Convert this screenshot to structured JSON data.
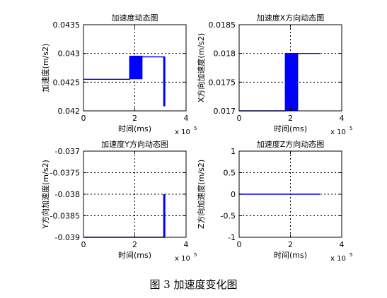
{
  "figure_caption": "图 3  加速度变化图",
  "chart_data": [
    {
      "type": "line",
      "title": "加速度动态图",
      "xlabel": "时间(ms)",
      "ylabel": "加速度(m/s2)",
      "x_multiplier_label": "x 10",
      "x_multiplier_exp": "5",
      "xlim": [
        0,
        4
      ],
      "ylim": [
        0.042,
        0.0435
      ],
      "x_ticks": [
        "0",
        "2",
        "4"
      ],
      "y_ticks": [
        "0.042",
        "0.0425",
        "0.043",
        "0.0435"
      ],
      "grid": true,
      "color": "#0000ff",
      "series": [
        {
          "x": [
            0,
            1.8,
            1.8,
            2.3,
            2.3,
            3.15,
            3.15
          ],
          "y": [
            0.04255,
            0.04255,
            0.04294,
            0.04294,
            0.04294,
            0.04294,
            0.04208
          ]
        }
      ],
      "filled_band": {
        "x": [
          1.8,
          2.3
        ],
        "y": [
          0.04255,
          0.04296
        ]
      }
    },
    {
      "type": "line",
      "title": "加速度X方向动态图",
      "xlabel": "时间(ms)",
      "ylabel": "X方向加速度(m/s2)",
      "x_multiplier_label": "x 10",
      "x_multiplier_exp": "5",
      "xlim": [
        0,
        4
      ],
      "ylim": [
        0.017,
        0.0185
      ],
      "x_ticks": [
        "0",
        "2",
        "4"
      ],
      "y_ticks": [
        "0.017",
        "0.0175",
        "0.018",
        "0.0185"
      ],
      "grid": true,
      "color": "#0000ff",
      "series": [
        {
          "x": [
            0,
            1.8,
            1.8,
            2.3,
            2.3,
            3.15
          ],
          "y": [
            0.017,
            0.017,
            0.018,
            0.018,
            0.018,
            0.018
          ]
        }
      ],
      "filled_band": {
        "x": [
          1.8,
          2.3
        ],
        "y": [
          0.017,
          0.018
        ]
      }
    },
    {
      "type": "line",
      "title": "加速度Y方向动态图",
      "xlabel": "时间(ms)",
      "ylabel": "Y方向加速度(m/s2)",
      "x_multiplier_label": "x 10",
      "x_multiplier_exp": "5",
      "xlim": [
        0,
        4
      ],
      "ylim": [
        -0.039,
        -0.037
      ],
      "x_ticks": [
        "0",
        "2",
        "4"
      ],
      "y_ticks": [
        "-0.039",
        "-0.0385",
        "-0.038",
        "-0.0375",
        "-0.037"
      ],
      "grid": true,
      "color": "#0000ff",
      "series": [
        {
          "x": [
            0,
            3.15,
            3.15
          ],
          "y": [
            -0.039,
            -0.039,
            -0.038
          ]
        }
      ]
    },
    {
      "type": "line",
      "title": "加速度Z方向动态图",
      "xlabel": "时间(ms)",
      "ylabel": "Z方向加速度(m/s2)",
      "x_multiplier_label": "x 10",
      "x_multiplier_exp": "5",
      "xlim": [
        0,
        4
      ],
      "ylim": [
        -1,
        1
      ],
      "x_ticks": [
        "0",
        "2",
        "4"
      ],
      "y_ticks": [
        "-1",
        "-0.5",
        "0",
        "0.5",
        "1"
      ],
      "grid": true,
      "color": "#0000ff",
      "series": [
        {
          "x": [
            0,
            3.15
          ],
          "y": [
            0,
            0
          ]
        }
      ]
    }
  ]
}
